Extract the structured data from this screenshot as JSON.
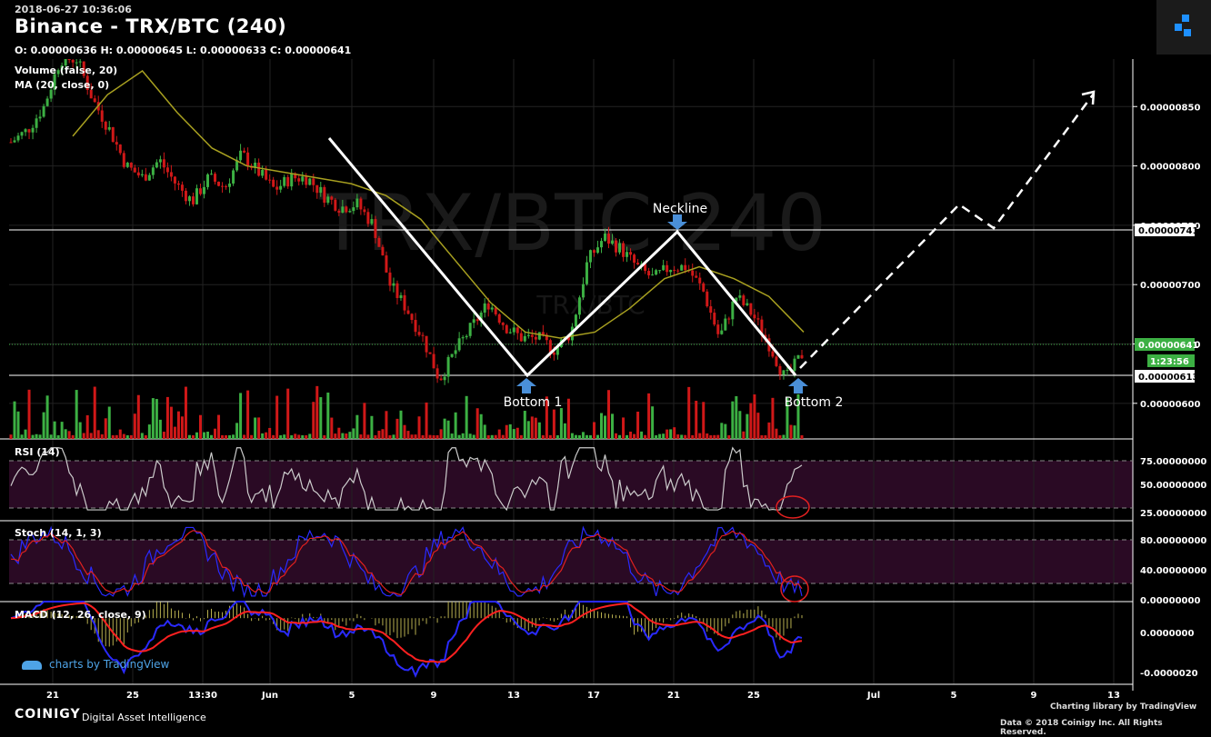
{
  "header": {
    "timestamp": "2018-06-27 10:36:06",
    "title": "Binance - TRX/BTC (240)",
    "ohlc": "O: 0.00000636 H: 0.00000645 L: 0.00000633 C: 0.00000641",
    "watermark_main": "TRX/BTC 240",
    "watermark_sub": "TRX/BTC"
  },
  "indicators": {
    "volume": "Volume (false, 20)",
    "ma": "MA (20, close, 0)",
    "rsi": "RSI (14)",
    "stoch": "Stoch (14, 1, 3)",
    "macd": "MACD (12, 26, close, 9)"
  },
  "annotations": {
    "neckline": "Neckline",
    "bottom1": "Bottom 1",
    "bottom2": "Bottom 2"
  },
  "price_axis": {
    "ticks": [
      "0.00000850",
      "0.00000800",
      "0.00000750",
      "0.00000700",
      "0.00000650",
      "0.00000600"
    ],
    "neckline_tag": "0.00000741",
    "last_price_tag": "0.00000641",
    "countdown_tag": "1:23:56",
    "support_tag": "0.00000613"
  },
  "rsi_axis": [
    "75.00000000",
    "50.00000000",
    "25.00000000"
  ],
  "stoch_axis": [
    "80.00000000",
    "40.00000000",
    "0.00000000"
  ],
  "macd_axis": [
    "0.0000000",
    "-0.0000020"
  ],
  "x_axis": [
    "21",
    "25",
    "13:30",
    "Jun",
    "5",
    "9",
    "13",
    "17",
    "21",
    "25",
    "Jul",
    "5",
    "9",
    "13"
  ],
  "footer": {
    "brand": "COINIGY",
    "brand_sub": "Digital Asset Intelligence",
    "charting_lib": "Charting library by  TradingView",
    "data_credit": "Data © 2018  Coinigy Inc. All Rights Reserved.",
    "tv_watermark": "charts by TradingView"
  },
  "colors": {
    "up": "#3cb043",
    "down": "#d01818",
    "ma": "#a8a020",
    "rsi": "#cccccc",
    "stoch_k": "#2a2aff",
    "stoch_d": "#e02020",
    "macd": "#2a2aff",
    "signal": "#ff2020",
    "hist": "#b8b050",
    "band": "#2a0a24"
  },
  "chart_data": {
    "type": "candlestick",
    "pair": "TRX/BTC",
    "exchange": "Binance",
    "timeframe": "240",
    "ylim": [
      5.7e-06,
      8.9e-06
    ],
    "x_ticks": [
      "21",
      "25",
      "13:30",
      "Jun",
      "5",
      "9",
      "13",
      "17",
      "21",
      "25",
      "Jul",
      "5",
      "9",
      "13"
    ],
    "close_path": [
      8.2e-06,
      8.3e-06,
      8.5e-06,
      8.9e-06,
      8.9e-06,
      8.55e-06,
      8.3e-06,
      8e-06,
      7.9e-06,
      8.05e-06,
      7.85e-06,
      7.7e-06,
      7.9e-06,
      7.82e-06,
      8.1e-06,
      7.95e-06,
      7.8e-06,
      7.9e-06,
      7.9e-06,
      7.75e-06,
      7.65e-06,
      7.68e-06,
      7.5e-06,
      7e-06,
      6.8e-06,
      6.55e-06,
      6.2e-06,
      6.45e-06,
      6.65e-06,
      6.85e-06,
      6.65e-06,
      6.55e-06,
      6.55e-06,
      6.45e-06,
      6.6e-06,
      7.2e-06,
      7.4e-06,
      7.3e-06,
      7.15e-06,
      7.05e-06,
      7.15e-06,
      7.15e-06,
      6.95e-06,
      6.55e-06,
      6.9e-06,
      6.75e-06,
      6.5e-06,
      6.2e-06,
      6.41e-06
    ],
    "ma_path": [
      8.25e-06,
      8.6e-06,
      8.8e-06,
      8.45e-06,
      8.15e-06,
      8e-06,
      7.95e-06,
      7.9e-06,
      7.85e-06,
      7.75e-06,
      7.55e-06,
      7.2e-06,
      6.85e-06,
      6.6e-06,
      6.55e-06,
      6.6e-06,
      6.8e-06,
      7.05e-06,
      7.15e-06,
      7.05e-06,
      6.9e-06,
      6.6e-06
    ],
    "levels": {
      "neckline": 7.41e-06,
      "support": 6.13e-06,
      "last": 6.41e-06
    },
    "pattern": [
      "Neckline",
      "Bottom 1",
      "Bottom 2"
    ],
    "rsi_ylim": [
      20,
      80
    ],
    "rsi_levels": [
      70,
      30
    ],
    "stoch_ylim": [
      0,
      100
    ],
    "stoch_levels": [
      80,
      20
    ],
    "macd_ylim": [
      -2.4e-06,
      6e-07
    ]
  }
}
